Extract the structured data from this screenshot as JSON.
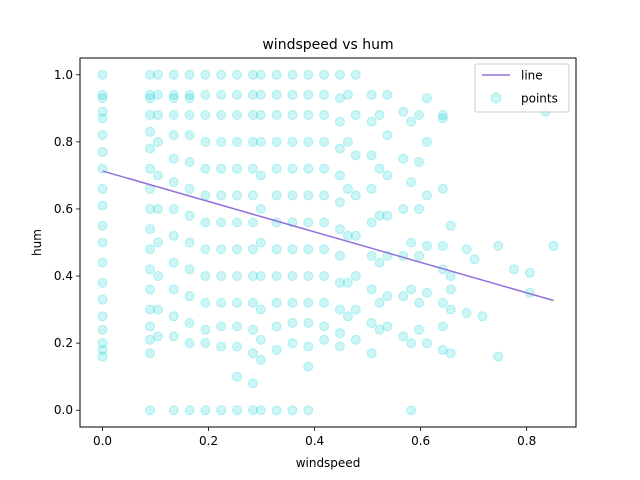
{
  "chart_data": {
    "type": "scatter",
    "title": "windspeed vs hum",
    "xlabel": "windspeed",
    "ylabel": "hum",
    "xlim": [
      -0.0425,
      0.893
    ],
    "ylim": [
      -0.05,
      1.05
    ],
    "xticks": [
      0.0,
      0.2,
      0.4,
      0.6,
      0.8
    ],
    "xtick_labels": [
      "0.0",
      "0.2",
      "0.4",
      "0.6",
      "0.8"
    ],
    "yticks": [
      0.0,
      0.2,
      0.4,
      0.6,
      0.8,
      1.0
    ],
    "ytick_labels": [
      "0.0",
      "0.2",
      "0.4",
      "0.6",
      "0.8",
      "1.0"
    ],
    "grid": false,
    "legend": {
      "placement": "top-right",
      "entries": [
        {
          "label": "line",
          "kind": "line",
          "color": "#9370DB"
        },
        {
          "label": "points",
          "kind": "marker",
          "color": "#00CED1"
        }
      ]
    },
    "series": [
      {
        "name": "points",
        "kind": "scatter",
        "color": "#00CED1",
        "alpha": 0.2,
        "points": [
          [
            0.0,
            1.0
          ],
          [
            0.0,
            0.94
          ],
          [
            0.0,
            0.93
          ],
          [
            0.0,
            0.89
          ],
          [
            0.0,
            0.87
          ],
          [
            0.0,
            0.82
          ],
          [
            0.0,
            0.77
          ],
          [
            0.0,
            0.72
          ],
          [
            0.0,
            0.66
          ],
          [
            0.0,
            0.61
          ],
          [
            0.0,
            0.55
          ],
          [
            0.0,
            0.5
          ],
          [
            0.0,
            0.44
          ],
          [
            0.0,
            0.38
          ],
          [
            0.0,
            0.33
          ],
          [
            0.0,
            0.28
          ],
          [
            0.0,
            0.24
          ],
          [
            0.0,
            0.2
          ],
          [
            0.0,
            0.18
          ],
          [
            0.0,
            0.16
          ],
          [
            0.0896,
            1.0
          ],
          [
            0.0896,
            0.94
          ],
          [
            0.0896,
            0.93
          ],
          [
            0.0896,
            0.88
          ],
          [
            0.0896,
            0.83
          ],
          [
            0.0896,
            0.78
          ],
          [
            0.0896,
            0.72
          ],
          [
            0.0896,
            0.66
          ],
          [
            0.0896,
            0.6
          ],
          [
            0.0896,
            0.54
          ],
          [
            0.0896,
            0.48
          ],
          [
            0.0896,
            0.42
          ],
          [
            0.0896,
            0.36
          ],
          [
            0.0896,
            0.3
          ],
          [
            0.0896,
            0.25
          ],
          [
            0.0896,
            0.21
          ],
          [
            0.0896,
            0.17
          ],
          [
            0.0896,
            0.0
          ],
          [
            0.1045,
            1.0
          ],
          [
            0.1045,
            0.94
          ],
          [
            0.1045,
            0.88
          ],
          [
            0.1045,
            0.8
          ],
          [
            0.1045,
            0.7
          ],
          [
            0.1045,
            0.6
          ],
          [
            0.1045,
            0.5
          ],
          [
            0.1045,
            0.4
          ],
          [
            0.1045,
            0.3
          ],
          [
            0.1045,
            0.22
          ],
          [
            0.1343,
            1.0
          ],
          [
            0.1343,
            0.94
          ],
          [
            0.1343,
            0.93
          ],
          [
            0.1343,
            0.88
          ],
          [
            0.1343,
            0.82
          ],
          [
            0.1343,
            0.75
          ],
          [
            0.1343,
            0.68
          ],
          [
            0.1343,
            0.6
          ],
          [
            0.1343,
            0.52
          ],
          [
            0.1343,
            0.44
          ],
          [
            0.1343,
            0.36
          ],
          [
            0.1343,
            0.28
          ],
          [
            0.1343,
            0.22
          ],
          [
            0.1343,
            0.0
          ],
          [
            0.1642,
            1.0
          ],
          [
            0.1642,
            0.94
          ],
          [
            0.1642,
            0.93
          ],
          [
            0.1642,
            0.88
          ],
          [
            0.1642,
            0.82
          ],
          [
            0.1642,
            0.74
          ],
          [
            0.1642,
            0.66
          ],
          [
            0.1642,
            0.58
          ],
          [
            0.1642,
            0.5
          ],
          [
            0.1642,
            0.42
          ],
          [
            0.1642,
            0.34
          ],
          [
            0.1642,
            0.26
          ],
          [
            0.1642,
            0.2
          ],
          [
            0.1642,
            0.0
          ],
          [
            0.194,
            1.0
          ],
          [
            0.194,
            0.94
          ],
          [
            0.194,
            0.88
          ],
          [
            0.194,
            0.8
          ],
          [
            0.194,
            0.72
          ],
          [
            0.194,
            0.64
          ],
          [
            0.194,
            0.56
          ],
          [
            0.194,
            0.48
          ],
          [
            0.194,
            0.4
          ],
          [
            0.194,
            0.32
          ],
          [
            0.194,
            0.24
          ],
          [
            0.194,
            0.2
          ],
          [
            0.194,
            0.0
          ],
          [
            0.2239,
            1.0
          ],
          [
            0.2239,
            0.94
          ],
          [
            0.2239,
            0.88
          ],
          [
            0.2239,
            0.8
          ],
          [
            0.2239,
            0.72
          ],
          [
            0.2239,
            0.64
          ],
          [
            0.2239,
            0.56
          ],
          [
            0.2239,
            0.48
          ],
          [
            0.2239,
            0.4
          ],
          [
            0.2239,
            0.32
          ],
          [
            0.2239,
            0.25
          ],
          [
            0.2239,
            0.19
          ],
          [
            0.2239,
            0.0
          ],
          [
            0.2537,
            1.0
          ],
          [
            0.2537,
            0.94
          ],
          [
            0.2537,
            0.88
          ],
          [
            0.2537,
            0.8
          ],
          [
            0.2537,
            0.72
          ],
          [
            0.2537,
            0.64
          ],
          [
            0.2537,
            0.56
          ],
          [
            0.2537,
            0.48
          ],
          [
            0.2537,
            0.4
          ],
          [
            0.2537,
            0.32
          ],
          [
            0.2537,
            0.25
          ],
          [
            0.2537,
            0.19
          ],
          [
            0.2537,
            0.1
          ],
          [
            0.2537,
            0.0
          ],
          [
            0.2836,
            1.0
          ],
          [
            0.2836,
            0.94
          ],
          [
            0.2836,
            0.88
          ],
          [
            0.2836,
            0.8
          ],
          [
            0.2836,
            0.72
          ],
          [
            0.2836,
            0.64
          ],
          [
            0.2836,
            0.56
          ],
          [
            0.2836,
            0.48
          ],
          [
            0.2836,
            0.4
          ],
          [
            0.2836,
            0.32
          ],
          [
            0.2836,
            0.24
          ],
          [
            0.2836,
            0.17
          ],
          [
            0.2836,
            0.08
          ],
          [
            0.2836,
            0.0
          ],
          [
            0.2985,
            1.0
          ],
          [
            0.2985,
            0.94
          ],
          [
            0.2985,
            0.88
          ],
          [
            0.2985,
            0.8
          ],
          [
            0.2985,
            0.7
          ],
          [
            0.2985,
            0.6
          ],
          [
            0.2985,
            0.5
          ],
          [
            0.2985,
            0.4
          ],
          [
            0.2985,
            0.3
          ],
          [
            0.2985,
            0.21
          ],
          [
            0.2985,
            0.15
          ],
          [
            0.2985,
            0.0
          ],
          [
            0.3284,
            1.0
          ],
          [
            0.3284,
            0.94
          ],
          [
            0.3284,
            0.88
          ],
          [
            0.3284,
            0.8
          ],
          [
            0.3284,
            0.72
          ],
          [
            0.3284,
            0.64
          ],
          [
            0.3284,
            0.56
          ],
          [
            0.3284,
            0.48
          ],
          [
            0.3284,
            0.4
          ],
          [
            0.3284,
            0.32
          ],
          [
            0.3284,
            0.25
          ],
          [
            0.3284,
            0.18
          ],
          [
            0.3284,
            0.0
          ],
          [
            0.3582,
            1.0
          ],
          [
            0.3582,
            0.94
          ],
          [
            0.3582,
            0.88
          ],
          [
            0.3582,
            0.8
          ],
          [
            0.3582,
            0.72
          ],
          [
            0.3582,
            0.64
          ],
          [
            0.3582,
            0.56
          ],
          [
            0.3582,
            0.48
          ],
          [
            0.3582,
            0.4
          ],
          [
            0.3582,
            0.32
          ],
          [
            0.3582,
            0.26
          ],
          [
            0.3582,
            0.2
          ],
          [
            0.3582,
            0.0
          ],
          [
            0.3881,
            1.0
          ],
          [
            0.3881,
            0.94
          ],
          [
            0.3881,
            0.88
          ],
          [
            0.3881,
            0.8
          ],
          [
            0.3881,
            0.72
          ],
          [
            0.3881,
            0.64
          ],
          [
            0.3881,
            0.56
          ],
          [
            0.3881,
            0.48
          ],
          [
            0.3881,
            0.4
          ],
          [
            0.3881,
            0.32
          ],
          [
            0.3881,
            0.26
          ],
          [
            0.3881,
            0.19
          ],
          [
            0.3881,
            0.13
          ],
          [
            0.3881,
            0.0
          ],
          [
            0.4179,
            1.0
          ],
          [
            0.4179,
            0.94
          ],
          [
            0.4179,
            0.88
          ],
          [
            0.4179,
            0.8
          ],
          [
            0.4179,
            0.72
          ],
          [
            0.4179,
            0.64
          ],
          [
            0.4179,
            0.56
          ],
          [
            0.4179,
            0.48
          ],
          [
            0.4179,
            0.4
          ],
          [
            0.4179,
            0.32
          ],
          [
            0.4179,
            0.25
          ],
          [
            0.4179,
            0.21
          ],
          [
            0.4478,
            1.0
          ],
          [
            0.4478,
            0.93
          ],
          [
            0.4478,
            0.86
          ],
          [
            0.4478,
            0.78
          ],
          [
            0.4478,
            0.7
          ],
          [
            0.4478,
            0.62
          ],
          [
            0.4478,
            0.54
          ],
          [
            0.4478,
            0.46
          ],
          [
            0.4478,
            0.38
          ],
          [
            0.4478,
            0.3
          ],
          [
            0.4478,
            0.23
          ],
          [
            0.4478,
            0.19
          ],
          [
            0.4627,
            0.94
          ],
          [
            0.4627,
            0.8
          ],
          [
            0.4627,
            0.66
          ],
          [
            0.4627,
            0.52
          ],
          [
            0.4627,
            0.38
          ],
          [
            0.4627,
            0.28
          ],
          [
            0.4776,
            1.0
          ],
          [
            0.4776,
            0.88
          ],
          [
            0.4776,
            0.76
          ],
          [
            0.4776,
            0.64
          ],
          [
            0.4776,
            0.52
          ],
          [
            0.4776,
            0.4
          ],
          [
            0.4776,
            0.3
          ],
          [
            0.4776,
            0.21
          ],
          [
            0.5075,
            0.94
          ],
          [
            0.5075,
            0.86
          ],
          [
            0.5075,
            0.76
          ],
          [
            0.5075,
            0.66
          ],
          [
            0.5075,
            0.56
          ],
          [
            0.5075,
            0.46
          ],
          [
            0.5075,
            0.36
          ],
          [
            0.5075,
            0.26
          ],
          [
            0.5075,
            0.17
          ],
          [
            0.5224,
            0.88
          ],
          [
            0.5224,
            0.72
          ],
          [
            0.5224,
            0.58
          ],
          [
            0.5224,
            0.44
          ],
          [
            0.5224,
            0.32
          ],
          [
            0.5224,
            0.24
          ],
          [
            0.5373,
            0.94
          ],
          [
            0.5373,
            0.82
          ],
          [
            0.5373,
            0.7
          ],
          [
            0.5373,
            0.58
          ],
          [
            0.5373,
            0.46
          ],
          [
            0.5373,
            0.34
          ],
          [
            0.5373,
            0.25
          ],
          [
            0.5672,
            0.89
          ],
          [
            0.5672,
            0.75
          ],
          [
            0.5672,
            0.6
          ],
          [
            0.5672,
            0.46
          ],
          [
            0.5672,
            0.34
          ],
          [
            0.5672,
            0.22
          ],
          [
            0.5821,
            0.86
          ],
          [
            0.5821,
            0.68
          ],
          [
            0.5821,
            0.5
          ],
          [
            0.5821,
            0.36
          ],
          [
            0.5821,
            0.2
          ],
          [
            0.5821,
            0.0
          ],
          [
            0.597,
            0.88
          ],
          [
            0.597,
            0.74
          ],
          [
            0.597,
            0.6
          ],
          [
            0.597,
            0.46
          ],
          [
            0.597,
            0.32
          ],
          [
            0.597,
            0.24
          ],
          [
            0.6119,
            0.93
          ],
          [
            0.6119,
            0.8
          ],
          [
            0.6119,
            0.64
          ],
          [
            0.6119,
            0.49
          ],
          [
            0.6119,
            0.35
          ],
          [
            0.6119,
            0.2
          ],
          [
            0.6418,
            0.87
          ],
          [
            0.6418,
            0.66
          ],
          [
            0.6418,
            0.42
          ],
          [
            0.6418,
            0.32
          ],
          [
            0.6418,
            0.25
          ],
          [
            0.6418,
            0.18
          ],
          [
            0.6418,
            0.88
          ],
          [
            0.6418,
            0.49
          ],
          [
            0.6567,
            0.55
          ],
          [
            0.6567,
            0.4
          ],
          [
            0.6567,
            0.36
          ],
          [
            0.6567,
            0.3
          ],
          [
            0.6567,
            0.17
          ],
          [
            0.6866,
            0.48
          ],
          [
            0.6866,
            0.29
          ],
          [
            0.7015,
            0.45
          ],
          [
            0.7164,
            0.28
          ],
          [
            0.7463,
            0.49
          ],
          [
            0.7463,
            0.16
          ],
          [
            0.7761,
            0.42
          ],
          [
            0.806,
            0.41
          ],
          [
            0.806,
            0.35
          ],
          [
            0.8358,
            0.89
          ],
          [
            0.8507,
            0.49
          ]
        ]
      },
      {
        "name": "line",
        "kind": "line",
        "color": "#9370DB",
        "points": [
          [
            0.0,
            0.713
          ],
          [
            0.8507,
            0.327
          ]
        ]
      }
    ]
  }
}
